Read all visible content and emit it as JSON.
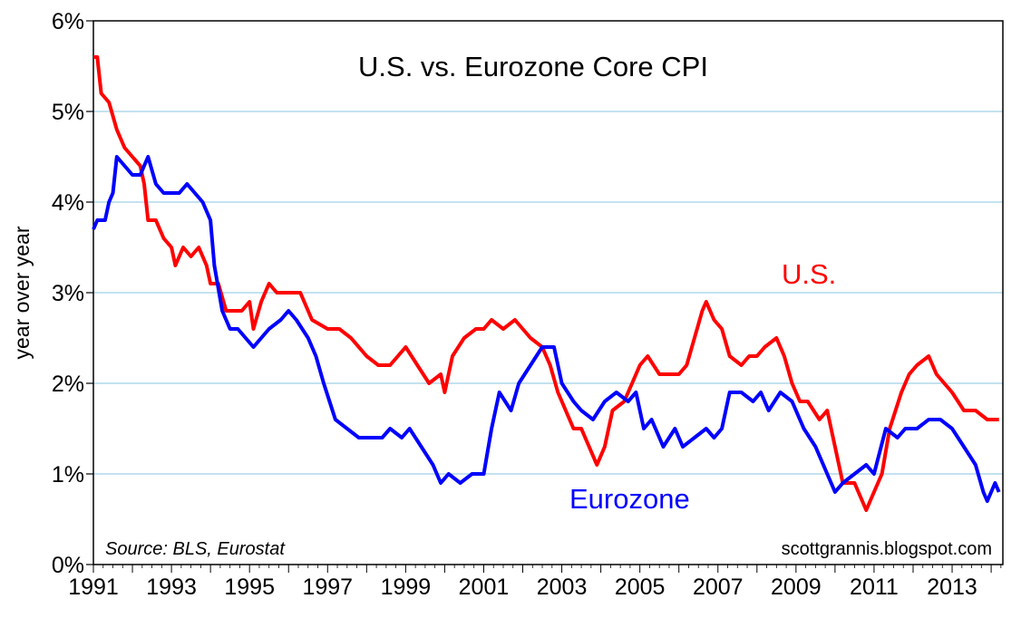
{
  "chart_data": {
    "type": "line",
    "title": "U.S. vs. Eurozone Core CPI",
    "ylabel": "year over year",
    "xlabel": "",
    "source": "Source: BLS, Eurostat",
    "credit": "scottgrannis.blogspot.com",
    "xlim": [
      1991,
      2014.3
    ],
    "ylim": [
      0,
      6
    ],
    "x_ticks": [
      "1991",
      "1993",
      "1995",
      "1997",
      "1999",
      "2001",
      "2003",
      "2005",
      "2007",
      "2009",
      "2011",
      "2013"
    ],
    "y_ticks": [
      "0%",
      "1%",
      "2%",
      "3%",
      "4%",
      "5%",
      "6%"
    ],
    "grid": "horizontal",
    "series": [
      {
        "name": "U.S.",
        "color": "#ff0000",
        "points": [
          [
            1991.0,
            5.6
          ],
          [
            1991.1,
            5.6
          ],
          [
            1991.2,
            5.2
          ],
          [
            1991.4,
            5.1
          ],
          [
            1991.6,
            4.8
          ],
          [
            1991.8,
            4.6
          ],
          [
            1992.0,
            4.5
          ],
          [
            1992.2,
            4.4
          ],
          [
            1992.3,
            4.2
          ],
          [
            1992.4,
            3.8
          ],
          [
            1992.6,
            3.8
          ],
          [
            1992.8,
            3.6
          ],
          [
            1993.0,
            3.5
          ],
          [
            1993.1,
            3.3
          ],
          [
            1993.3,
            3.5
          ],
          [
            1993.5,
            3.4
          ],
          [
            1993.7,
            3.5
          ],
          [
            1993.9,
            3.3
          ],
          [
            1994.0,
            3.1
          ],
          [
            1994.2,
            3.1
          ],
          [
            1994.4,
            2.8
          ],
          [
            1994.6,
            2.8
          ],
          [
            1994.8,
            2.8
          ],
          [
            1995.0,
            2.9
          ],
          [
            1995.1,
            2.6
          ],
          [
            1995.3,
            2.9
          ],
          [
            1995.5,
            3.1
          ],
          [
            1995.7,
            3.0
          ],
          [
            1996.0,
            3.0
          ],
          [
            1996.3,
            3.0
          ],
          [
            1996.6,
            2.7
          ],
          [
            1997.0,
            2.6
          ],
          [
            1997.3,
            2.6
          ],
          [
            1997.6,
            2.5
          ],
          [
            1998.0,
            2.3
          ],
          [
            1998.3,
            2.2
          ],
          [
            1998.6,
            2.2
          ],
          [
            1999.0,
            2.4
          ],
          [
            1999.3,
            2.2
          ],
          [
            1999.6,
            2.0
          ],
          [
            1999.9,
            2.1
          ],
          [
            2000.0,
            1.9
          ],
          [
            2000.2,
            2.3
          ],
          [
            2000.5,
            2.5
          ],
          [
            2000.8,
            2.6
          ],
          [
            2001.0,
            2.6
          ],
          [
            2001.2,
            2.7
          ],
          [
            2001.5,
            2.6
          ],
          [
            2001.8,
            2.7
          ],
          [
            2002.0,
            2.6
          ],
          [
            2002.2,
            2.5
          ],
          [
            2002.5,
            2.4
          ],
          [
            2002.7,
            2.2
          ],
          [
            2002.9,
            1.9
          ],
          [
            2003.1,
            1.7
          ],
          [
            2003.3,
            1.5
          ],
          [
            2003.5,
            1.5
          ],
          [
            2003.7,
            1.3
          ],
          [
            2003.9,
            1.1
          ],
          [
            2004.1,
            1.3
          ],
          [
            2004.3,
            1.7
          ],
          [
            2004.6,
            1.8
          ],
          [
            2004.8,
            2.0
          ],
          [
            2005.0,
            2.2
          ],
          [
            2005.2,
            2.3
          ],
          [
            2005.5,
            2.1
          ],
          [
            2005.8,
            2.1
          ],
          [
            2006.0,
            2.1
          ],
          [
            2006.2,
            2.2
          ],
          [
            2006.4,
            2.5
          ],
          [
            2006.6,
            2.8
          ],
          [
            2006.7,
            2.9
          ],
          [
            2006.9,
            2.7
          ],
          [
            2007.1,
            2.6
          ],
          [
            2007.3,
            2.3
          ],
          [
            2007.6,
            2.2
          ],
          [
            2007.8,
            2.3
          ],
          [
            2008.0,
            2.3
          ],
          [
            2008.2,
            2.4
          ],
          [
            2008.5,
            2.5
          ],
          [
            2008.7,
            2.3
          ],
          [
            2008.9,
            2.0
          ],
          [
            2009.1,
            1.8
          ],
          [
            2009.3,
            1.8
          ],
          [
            2009.6,
            1.6
          ],
          [
            2009.8,
            1.7
          ],
          [
            2010.0,
            1.3
          ],
          [
            2010.2,
            0.9
          ],
          [
            2010.5,
            0.9
          ],
          [
            2010.8,
            0.6
          ],
          [
            2011.0,
            0.8
          ],
          [
            2011.2,
            1.0
          ],
          [
            2011.4,
            1.5
          ],
          [
            2011.7,
            1.9
          ],
          [
            2011.9,
            2.1
          ],
          [
            2012.1,
            2.2
          ],
          [
            2012.4,
            2.3
          ],
          [
            2012.6,
            2.1
          ],
          [
            2012.8,
            2.0
          ],
          [
            2013.0,
            1.9
          ],
          [
            2013.3,
            1.7
          ],
          [
            2013.6,
            1.7
          ],
          [
            2013.9,
            1.6
          ],
          [
            2014.1,
            1.6
          ],
          [
            2014.2,
            1.6
          ]
        ]
      },
      {
        "name": "Eurozone",
        "color": "#0000ff",
        "points": [
          [
            1991.0,
            3.7
          ],
          [
            1991.1,
            3.8
          ],
          [
            1991.3,
            3.8
          ],
          [
            1991.4,
            4.0
          ],
          [
            1991.5,
            4.1
          ],
          [
            1991.6,
            4.5
          ],
          [
            1991.8,
            4.4
          ],
          [
            1992.0,
            4.3
          ],
          [
            1992.2,
            4.3
          ],
          [
            1992.4,
            4.5
          ],
          [
            1992.6,
            4.2
          ],
          [
            1992.8,
            4.1
          ],
          [
            1993.0,
            4.1
          ],
          [
            1993.2,
            4.1
          ],
          [
            1993.4,
            4.2
          ],
          [
            1993.6,
            4.1
          ],
          [
            1993.8,
            4.0
          ],
          [
            1994.0,
            3.8
          ],
          [
            1994.1,
            3.3
          ],
          [
            1994.3,
            2.8
          ],
          [
            1994.5,
            2.6
          ],
          [
            1994.7,
            2.6
          ],
          [
            1994.9,
            2.5
          ],
          [
            1995.1,
            2.4
          ],
          [
            1995.3,
            2.5
          ],
          [
            1995.5,
            2.6
          ],
          [
            1995.8,
            2.7
          ],
          [
            1996.0,
            2.8
          ],
          [
            1996.2,
            2.7
          ],
          [
            1996.5,
            2.5
          ],
          [
            1996.7,
            2.3
          ],
          [
            1996.9,
            2.0
          ],
          [
            1997.2,
            1.6
          ],
          [
            1997.5,
            1.5
          ],
          [
            1997.8,
            1.4
          ],
          [
            1998.1,
            1.4
          ],
          [
            1998.4,
            1.4
          ],
          [
            1998.6,
            1.5
          ],
          [
            1998.9,
            1.4
          ],
          [
            1999.1,
            1.5
          ],
          [
            1999.4,
            1.3
          ],
          [
            1999.7,
            1.1
          ],
          [
            1999.9,
            0.9
          ],
          [
            2000.1,
            1.0
          ],
          [
            2000.4,
            0.9
          ],
          [
            2000.7,
            1.0
          ],
          [
            2001.0,
            1.0
          ],
          [
            2001.2,
            1.5
          ],
          [
            2001.4,
            1.9
          ],
          [
            2001.7,
            1.7
          ],
          [
            2001.9,
            2.0
          ],
          [
            2002.2,
            2.2
          ],
          [
            2002.5,
            2.4
          ],
          [
            2002.8,
            2.4
          ],
          [
            2003.0,
            2.0
          ],
          [
            2003.3,
            1.8
          ],
          [
            2003.5,
            1.7
          ],
          [
            2003.8,
            1.6
          ],
          [
            2004.1,
            1.8
          ],
          [
            2004.4,
            1.9
          ],
          [
            2004.7,
            1.8
          ],
          [
            2004.9,
            1.9
          ],
          [
            2005.1,
            1.5
          ],
          [
            2005.3,
            1.6
          ],
          [
            2005.6,
            1.3
          ],
          [
            2005.9,
            1.5
          ],
          [
            2006.1,
            1.3
          ],
          [
            2006.4,
            1.4
          ],
          [
            2006.7,
            1.5
          ],
          [
            2006.9,
            1.4
          ],
          [
            2007.1,
            1.5
          ],
          [
            2007.3,
            1.9
          ],
          [
            2007.6,
            1.9
          ],
          [
            2007.9,
            1.8
          ],
          [
            2008.1,
            1.9
          ],
          [
            2008.3,
            1.7
          ],
          [
            2008.6,
            1.9
          ],
          [
            2008.9,
            1.8
          ],
          [
            2009.2,
            1.5
          ],
          [
            2009.5,
            1.3
          ],
          [
            2009.8,
            1.0
          ],
          [
            2010.0,
            0.8
          ],
          [
            2010.2,
            0.9
          ],
          [
            2010.5,
            1.0
          ],
          [
            2010.8,
            1.1
          ],
          [
            2011.0,
            1.0
          ],
          [
            2011.3,
            1.5
          ],
          [
            2011.6,
            1.4
          ],
          [
            2011.8,
            1.5
          ],
          [
            2012.1,
            1.5
          ],
          [
            2012.4,
            1.6
          ],
          [
            2012.7,
            1.6
          ],
          [
            2013.0,
            1.5
          ],
          [
            2013.3,
            1.3
          ],
          [
            2013.6,
            1.1
          ],
          [
            2013.8,
            0.8
          ],
          [
            2013.9,
            0.7
          ],
          [
            2014.1,
            0.9
          ],
          [
            2014.2,
            0.8
          ]
        ]
      }
    ]
  }
}
